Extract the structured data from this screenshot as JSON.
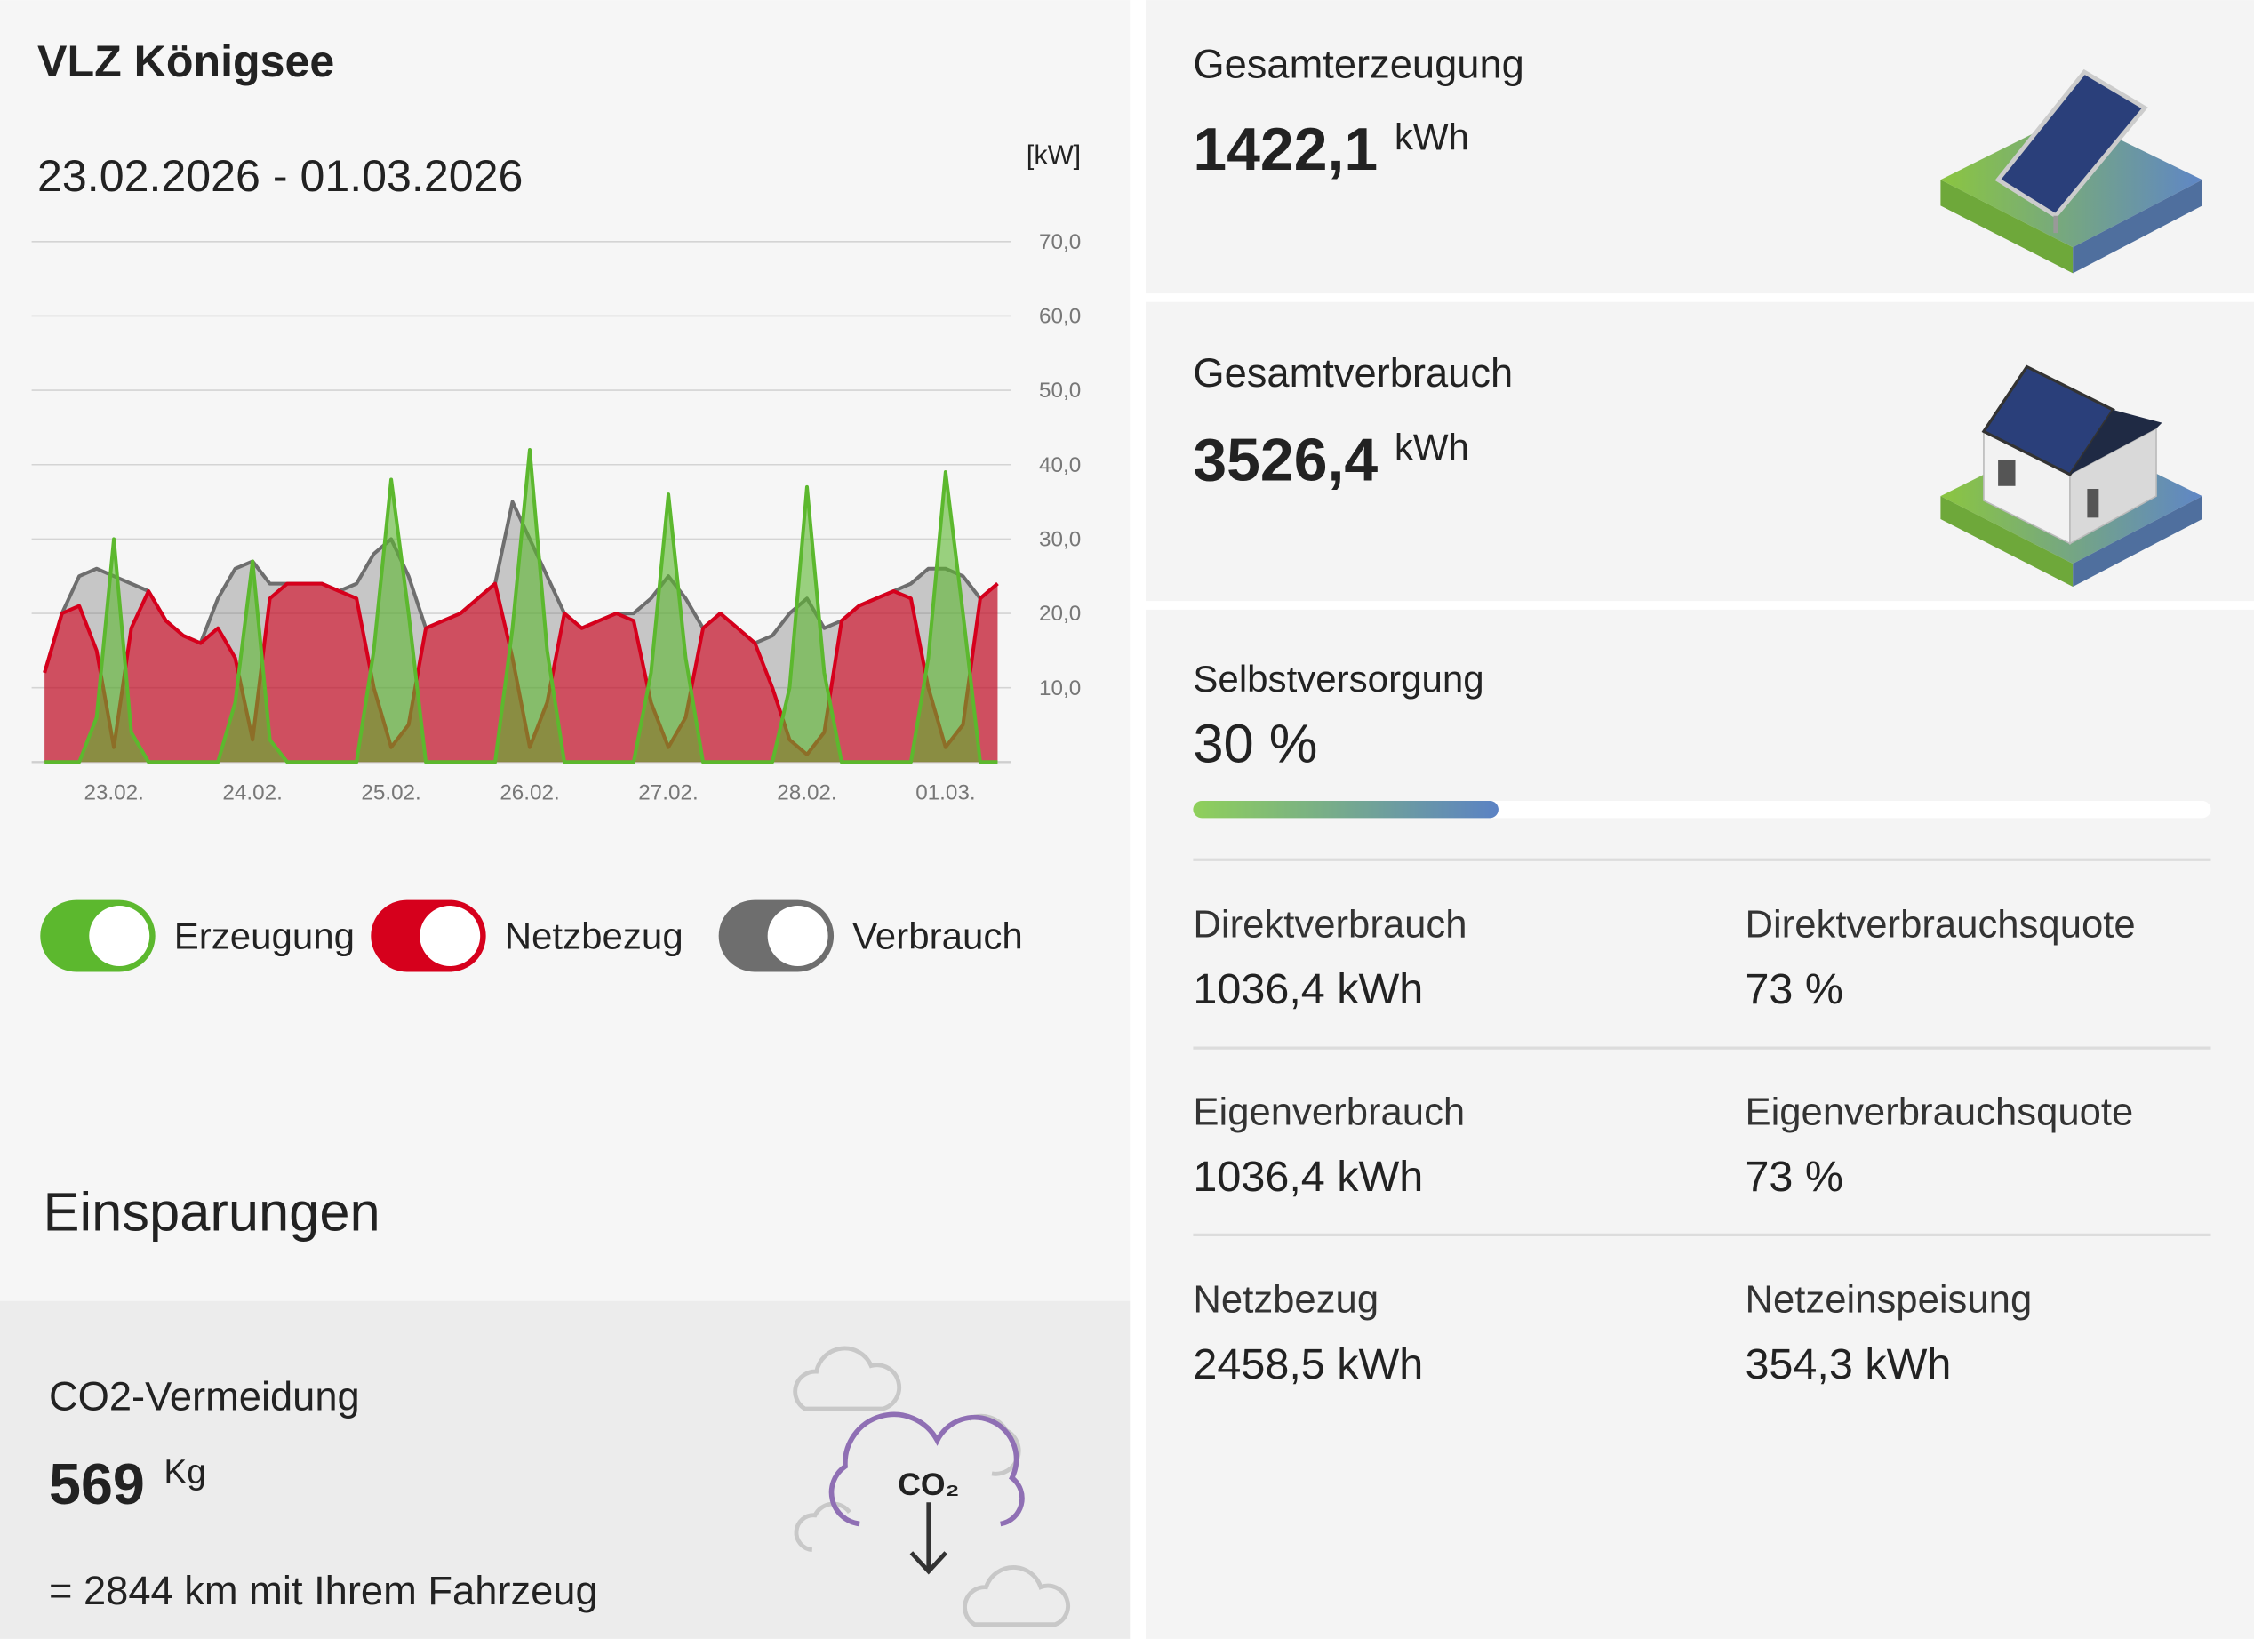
{
  "header": {
    "title": "VLZ Königsee",
    "date_range": "23.02.2026 - 01.03.2026"
  },
  "chart_data": {
    "type": "area",
    "y_axis_label": "[kW]",
    "categories": [
      null,
      null,
      null,
      null,
      "23.02.",
      null,
      null,
      null,
      null,
      null,
      null,
      null,
      "24.02.",
      null,
      null,
      null,
      null,
      null,
      null,
      null,
      "25.02.",
      null,
      null,
      null,
      null,
      null,
      null,
      null,
      "26.02.",
      null,
      null,
      null,
      null,
      null,
      null,
      null,
      "27.02.",
      null,
      null,
      null,
      null,
      null,
      null,
      null,
      "28.02.",
      null,
      null,
      null,
      null,
      null,
      null,
      null,
      "01.03.",
      null,
      null,
      null
    ],
    "series": [
      {
        "name": "Erzeugung",
        "color": "#5cb82e",
        "values": [
          0,
          0,
          0,
          6,
          30,
          4,
          0,
          0,
          0,
          0,
          0,
          8,
          27,
          3,
          0,
          0,
          0,
          0,
          0,
          15,
          38,
          20,
          0,
          0,
          0,
          0,
          0,
          18,
          42,
          15,
          0,
          0,
          0,
          0,
          0,
          12,
          36,
          14,
          0,
          0,
          0,
          0,
          0,
          10,
          37,
          12,
          0,
          0,
          0,
          0,
          0,
          14,
          39,
          20,
          0,
          0
        ]
      },
      {
        "name": "Netzbezug",
        "color": "#d6001c",
        "values": [
          12,
          20,
          21,
          15,
          2,
          18,
          23,
          19,
          17,
          16,
          18,
          14,
          3,
          22,
          24,
          24,
          24,
          23,
          22,
          10,
          2,
          5,
          18,
          19,
          20,
          22,
          24,
          14,
          2,
          8,
          20,
          18,
          19,
          20,
          19,
          8,
          2,
          6,
          18,
          20,
          18,
          16,
          10,
          3,
          1,
          4,
          19,
          21,
          22,
          23,
          22,
          10,
          2,
          5,
          22,
          24
        ]
      },
      {
        "name": "Verbrauch",
        "color": "#6e6e6e",
        "values": [
          12,
          20,
          25,
          26,
          25,
          24,
          23,
          19,
          17,
          16,
          22,
          26,
          27,
          24,
          24,
          24,
          24,
          23,
          24,
          28,
          30,
          25,
          18,
          19,
          20,
          22,
          24,
          35,
          30,
          25,
          20,
          18,
          19,
          20,
          20,
          22,
          25,
          22,
          18,
          20,
          18,
          16,
          17,
          20,
          22,
          18,
          19,
          21,
          22,
          23,
          24,
          26,
          26,
          25,
          22,
          24
        ]
      }
    ],
    "ylim": [
      0,
      70
    ],
    "yticks": [
      {
        "value": 10,
        "label": "10,0"
      },
      {
        "value": 20,
        "label": "20,0"
      },
      {
        "value": 30,
        "label": "30,0"
      },
      {
        "value": 40,
        "label": "40,0"
      },
      {
        "value": 50,
        "label": "50,0"
      },
      {
        "value": 60,
        "label": "60,0"
      },
      {
        "value": 70,
        "label": "70,0"
      }
    ],
    "grid": true
  },
  "savings": {
    "title": "Einsparungen",
    "co2": {
      "label": "CO2-Vermeidung",
      "value": "569",
      "unit": "Kg",
      "equivalent": "= 2844 km mit Ihrem Fahrzeug",
      "icon_label": "CO₂"
    }
  },
  "summary": {
    "generation": {
      "label": "Gesamterzeugung",
      "value": "1422,1",
      "unit": "kWh"
    },
    "consumption": {
      "label": "Gesamtverbrauch",
      "value": "3526,4",
      "unit": "kWh"
    }
  },
  "self_sufficiency": {
    "label": "Selbstversorgung",
    "value": 30,
    "value_label": "30 %"
  },
  "stats": [
    {
      "label": "Direktverbrauch",
      "value": "1036,4 kWh"
    },
    {
      "label": "Direktverbrauchsquote",
      "value": "73 %"
    },
    {
      "label": "Eigenverbrauch",
      "value": "1036,4 kWh"
    },
    {
      "label": "Eigenverbrauchsquote",
      "value": "73 %"
    },
    {
      "label": "Netzbezug",
      "value": "2458,5 kWh"
    },
    {
      "label": "Netzeinspeisung",
      "value": "354,3 kWh"
    }
  ]
}
